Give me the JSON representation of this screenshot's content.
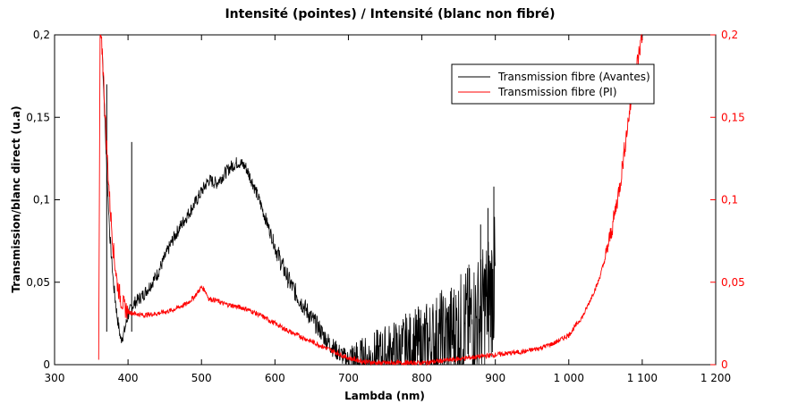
{
  "chart_data": {
    "type": "line",
    "title": "Intensité (pointes) / Intensité (blanc non fibré)",
    "xlabel": "Lambda (nm)",
    "ylabel": "Transmission/blanc direct (u.a)",
    "xlim": [
      300,
      1200
    ],
    "ylim": [
      0,
      0.2
    ],
    "y2lim": [
      0,
      0.2
    ],
    "x_ticks": [
      300,
      400,
      500,
      600,
      700,
      800,
      900,
      1000,
      1100,
      1200
    ],
    "x_tick_labels": [
      "300",
      "400",
      "500",
      "600",
      "700",
      "800",
      "900",
      "1 000",
      "1 100",
      "1 200"
    ],
    "y_ticks": [
      0,
      0.05,
      0.1,
      0.15,
      0.2
    ],
    "y_tick_labels": [
      "0",
      "0,05",
      "0,1",
      "0,15",
      "0,2"
    ],
    "y2_tick_labels": [
      "0",
      "0,05",
      "0,1",
      "0,15",
      "0,2"
    ],
    "grid": false,
    "legend_position": "top-right",
    "series": [
      {
        "name": "Transmission fibre (Avantes)",
        "color": "#000000",
        "axis": "left",
        "x": [
          365,
          370,
          375,
          380,
          385,
          390,
          395,
          400,
          405,
          410,
          420,
          430,
          440,
          450,
          460,
          470,
          480,
          490,
          500,
          510,
          520,
          530,
          540,
          550,
          560,
          570,
          580,
          590,
          600,
          610,
          620,
          630,
          640,
          650,
          660,
          670,
          680,
          690,
          700,
          710,
          720,
          740,
          760,
          780,
          800,
          820,
          840,
          860,
          880,
          900
        ],
        "y": [
          0.19,
          0.13,
          0.08,
          0.05,
          0.03,
          0.015,
          0.02,
          0.03,
          0.035,
          0.038,
          0.042,
          0.048,
          0.055,
          0.065,
          0.075,
          0.083,
          0.09,
          0.097,
          0.105,
          0.112,
          0.11,
          0.115,
          0.12,
          0.123,
          0.12,
          0.11,
          0.098,
          0.085,
          0.072,
          0.06,
          0.05,
          0.042,
          0.035,
          0.028,
          0.022,
          0.015,
          0.01,
          0.006,
          0.003,
          0.002,
          0.002,
          0.004,
          0.006,
          0.008,
          0.01,
          0.014,
          0.018,
          0.024,
          0.03,
          0.05
        ],
        "spikes": [
          {
            "x": 405,
            "y": 0.135
          },
          {
            "x": 371,
            "y": 0.17
          },
          {
            "x": 880,
            "y": 0.085
          },
          {
            "x": 890,
            "y": 0.095
          },
          {
            "x": 898,
            "y": 0.108
          }
        ]
      },
      {
        "name": "Transmission fibre (PI)",
        "color": "#ff0000",
        "axis": "right",
        "x": [
          360,
          362,
          365,
          370,
          375,
          380,
          385,
          390,
          395,
          400,
          410,
          420,
          440,
          460,
          480,
          490,
          500,
          505,
          510,
          520,
          530,
          540,
          560,
          580,
          600,
          620,
          640,
          660,
          680,
          700,
          720,
          740,
          760,
          780,
          800,
          820,
          840,
          860,
          880,
          900,
          920,
          940,
          960,
          980,
          1000,
          1020,
          1040,
          1050,
          1060,
          1070,
          1080,
          1090,
          1100
        ],
        "y": [
          0.0,
          0.2,
          0.19,
          0.14,
          0.1,
          0.07,
          0.05,
          0.04,
          0.035,
          0.032,
          0.031,
          0.03,
          0.031,
          0.033,
          0.037,
          0.041,
          0.047,
          0.045,
          0.04,
          0.039,
          0.037,
          0.036,
          0.034,
          0.03,
          0.025,
          0.02,
          0.016,
          0.012,
          0.008,
          0.004,
          0.002,
          0.001,
          0.001,
          0.001,
          0.001,
          0.002,
          0.003,
          0.004,
          0.005,
          0.006,
          0.007,
          0.008,
          0.01,
          0.013,
          0.018,
          0.03,
          0.05,
          0.065,
          0.085,
          0.11,
          0.145,
          0.175,
          0.2
        ]
      }
    ]
  }
}
